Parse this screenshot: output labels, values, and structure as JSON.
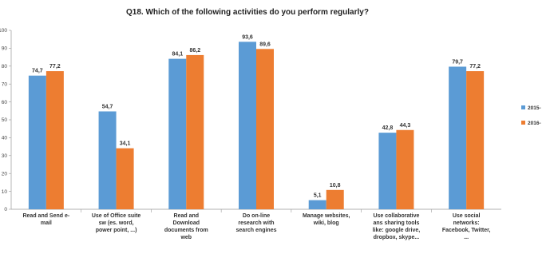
{
  "chart_data": {
    "type": "bar",
    "title": "Q18. Which of the following activities do you perform regularly?",
    "categories": [
      [
        "Read and Send e-",
        "mail"
      ],
      [
        "Use of Office suite",
        "sw (es. word,",
        "power point, ...)"
      ],
      [
        "Read and",
        "Download",
        "documents from",
        "web"
      ],
      [
        "Do on-line",
        "research with",
        "search engines"
      ],
      [
        "Manage websites,",
        "wiki, blog"
      ],
      [
        "Use collaborative",
        "ans sharing tools",
        "like: google drive,",
        "dropbox, skype..."
      ],
      [
        "Use social",
        "networks:",
        "Facebook, Twitter,",
        "..."
      ]
    ],
    "series": [
      {
        "name": "2015-",
        "color": "#5b9bd5",
        "values": [
          74.7,
          54.7,
          84.1,
          93.6,
          5.1,
          42.8,
          79.7
        ],
        "labels": [
          "74,7",
          "54,7",
          "84,1",
          "93,6",
          "5,1",
          "42,8",
          "79,7"
        ]
      },
      {
        "name": "2016-",
        "color": "#ed7d31",
        "values": [
          77.2,
          34.1,
          86.2,
          89.6,
          10.8,
          44.3,
          77.2
        ],
        "labels": [
          "77,2",
          "34,1",
          "86,2",
          "89,6",
          "10,8",
          "44,3",
          "77,2"
        ]
      }
    ],
    "ylim": [
      0,
      100
    ],
    "yticks": [
      0,
      10,
      20,
      30,
      40,
      50,
      60,
      70,
      80,
      90,
      100
    ],
    "grid": false,
    "legend": "right"
  }
}
